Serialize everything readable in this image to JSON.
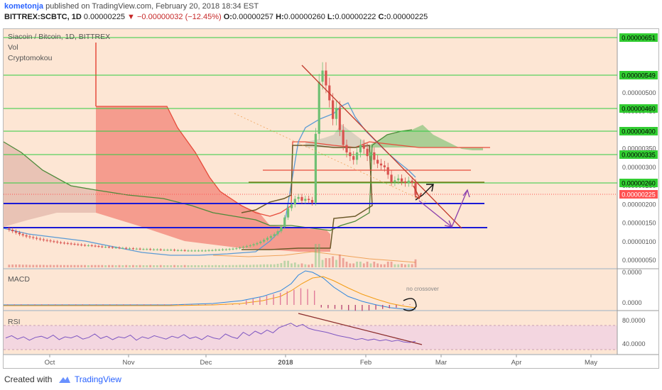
{
  "header": {
    "author": "kometonja",
    "published_text": "published on TradingView.com, February 20, 2018 18:34 EST",
    "symbol": "BITTREX:SCBTC, 1D",
    "last": "0.00000225",
    "change_arrow": "▼",
    "change": "−0.00000032 (−12.45%)",
    "o_label": "O:",
    "o_value": "0.00000257",
    "h_label": "H:",
    "h_value": "0.00000260",
    "l_label": "L:",
    "l_value": "0.00000222",
    "c_label": "C:",
    "c_value": "0.00000225"
  },
  "legend": {
    "title": "Siacoin / Bitcoin, 1D, BITTREX",
    "vol": "Vol",
    "indicator": "Cryptomokou"
  },
  "footer": {
    "created_with": "Created with",
    "brand": "TradingView"
  },
  "colors": {
    "bg_main": "#fde6d4",
    "up": "#6fbf73",
    "down": "#d9534f",
    "hline_green": "#2ecc40",
    "hline_blue": "#1a1ad6",
    "trend_red": "#c0392b",
    "arrow_purple": "#8e44ad",
    "price_tag": "#ff5252",
    "level_tag": "#32cd32",
    "rsi_band": "#f3d6e0"
  },
  "chart_data": [
    {
      "type": "candlestick",
      "title": "Siacoin / Bitcoin, 1D, BITTREX",
      "x_ticks": [
        "Oct",
        "Nov",
        "Dec",
        "2018",
        "Feb",
        "Mar",
        "Apr",
        "May"
      ],
      "y_ticks": [
        "0.00000500",
        "0.00000450",
        "0.00000400",
        "0.00000350",
        "0.00000300",
        "0.00000250",
        "0.00000200",
        "0.00000150",
        "0.00000100",
        "0.00000050"
      ],
      "level_labels": [
        "0.00000651",
        "0.00000549",
        "0.00000460",
        "0.00000400",
        "0.00000335",
        "0.00000260"
      ],
      "level_values": [
        651,
        549,
        460,
        400,
        335,
        260
      ],
      "blue_levels": [
        200,
        150
      ],
      "current_price_label": "0.00000225",
      "current_price": 225,
      "close_series_units_1e-8": [
        135,
        132,
        128,
        124,
        120,
        117,
        114,
        112,
        110,
        108,
        106,
        104,
        103,
        101,
        100,
        98,
        97,
        96,
        95,
        94,
        93,
        92,
        91,
        90,
        90,
        89,
        88,
        87,
        86,
        86,
        85,
        84,
        84,
        83,
        83,
        82,
        82,
        81,
        81,
        80,
        80,
        80,
        79,
        79,
        79,
        78,
        78,
        78,
        78,
        77,
        77,
        77,
        76,
        76,
        76,
        76,
        76,
        76,
        76,
        77,
        77,
        78,
        78,
        79,
        79,
        80,
        81,
        82,
        84,
        86,
        88,
        90,
        93,
        96,
        100,
        105,
        110,
        115,
        120,
        128,
        140,
        165,
        190,
        200,
        215,
        220,
        210,
        215,
        212,
        205,
        390,
        530,
        560,
        520,
        480,
        430,
        460,
        400,
        360,
        340,
        330,
        320,
        340,
        360,
        350,
        330,
        340,
        320,
        310,
        305,
        300,
        280,
        260,
        265,
        270,
        262,
        258,
        264,
        258,
        225
      ]
    },
    {
      "type": "line",
      "title": "MACD",
      "y_ticks": [
        "0.0000",
        "0.0000"
      ],
      "annotation": "no crossover"
    },
    {
      "type": "line",
      "title": "RSI",
      "y_ticks": [
        "80.0000",
        "40.0000"
      ],
      "band": [
        30,
        70
      ]
    }
  ]
}
